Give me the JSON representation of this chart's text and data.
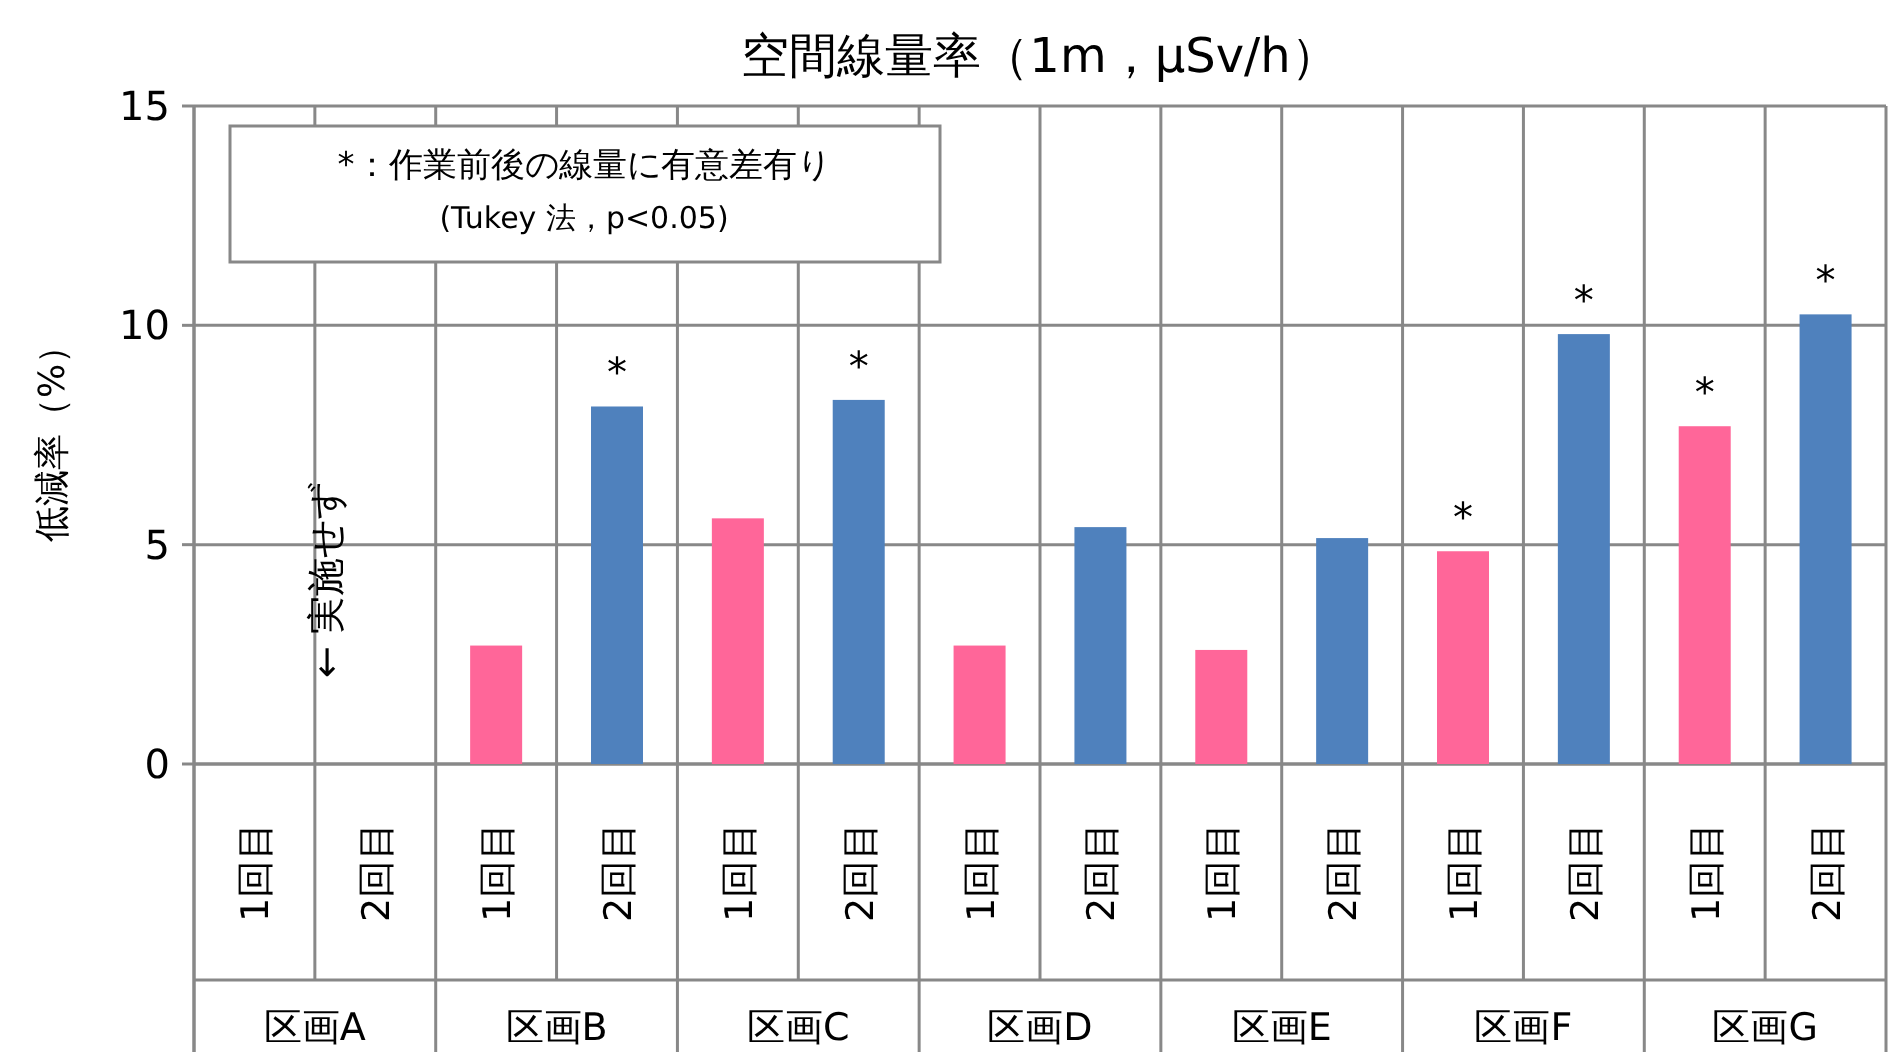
{
  "chart_data": {
    "type": "bar",
    "title": "空間線量率（1m，μSv/h）",
    "ylabel": "低減率（%）",
    "categories": [
      "1回目",
      "2回目",
      "1回目",
      "2回目",
      "1回目",
      "2回目",
      "1回目",
      "2回目",
      "1回目",
      "2回目",
      "1回目",
      "2回目",
      "1回目",
      "2回目"
    ],
    "values": [
      null,
      null,
      2.7,
      8.15,
      5.6,
      8.3,
      2.7,
      5.4,
      2.6,
      5.15,
      4.85,
      9.8,
      7.7,
      10.25
    ],
    "colors": [
      "#ff6699",
      "#4f81bd",
      "#ff6699",
      "#4f81bd",
      "#ff6699",
      "#4f81bd",
      "#ff6699",
      "#4f81bd",
      "#ff6699",
      "#4f81bd",
      "#ff6699",
      "#4f81bd",
      "#ff6699",
      "#4f81bd"
    ],
    "value_labels": [
      null,
      null,
      null,
      "*",
      null,
      "*",
      null,
      null,
      null,
      null,
      "*",
      "*",
      "*",
      "*"
    ],
    "ylim": [
      0,
      15
    ],
    "yticks": [
      0,
      5,
      10,
      15
    ],
    "grid": true,
    "annotations": [
      "*：作業前後の線量に有意差有り\n(Tukey 法，p<0.05)",
      "← 実施せず",
      "区画A",
      "区画B",
      "区画C",
      "区画D",
      "区画E",
      "区画F",
      "区画G"
    ]
  }
}
